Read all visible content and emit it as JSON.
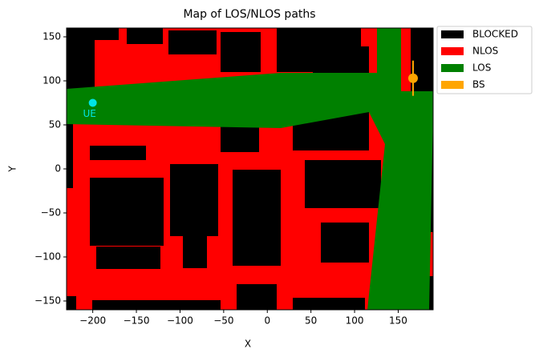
{
  "chart_data": {
    "type": "map",
    "title": "Map of LOS/NLOS paths",
    "xlabel": "X",
    "ylabel": "Y",
    "xlim": [
      -230,
      190
    ],
    "ylim": [
      -160,
      160
    ],
    "xticks": [
      {
        "value": -200,
        "label": "−200"
      },
      {
        "value": -150,
        "label": "−150"
      },
      {
        "value": -100,
        "label": "−100"
      },
      {
        "value": -50,
        "label": "−50"
      },
      0,
      50,
      100,
      150
    ],
    "yticks": [
      {
        "value": -150,
        "label": "−150"
      },
      {
        "value": -100,
        "label": "−100"
      },
      {
        "value": -50,
        "label": "−50"
      },
      0,
      50,
      100,
      150
    ],
    "legend": [
      {
        "name": "BLOCKED",
        "color": "#000000"
      },
      {
        "name": "NLOS",
        "color": "#ff0000"
      },
      {
        "name": "LOS",
        "color": "#008000"
      },
      {
        "name": "BS",
        "color": "#ffa500"
      }
    ],
    "points": [
      {
        "label": "UE",
        "x": -200,
        "y": 75,
        "color": "#00e5e5"
      },
      {
        "x": 167,
        "y": 103,
        "yerr": 20,
        "color": "#ffa500"
      }
    ]
  }
}
